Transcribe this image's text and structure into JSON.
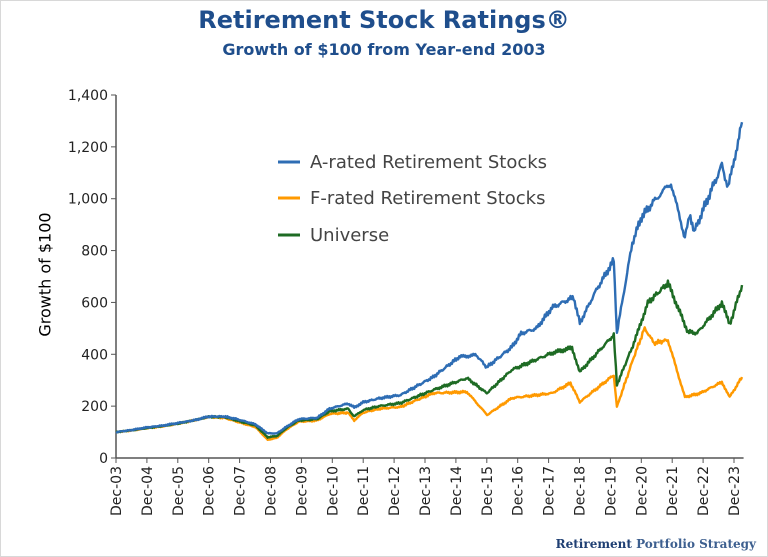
{
  "chart_data": {
    "type": "line",
    "title": "Retirement Stock Ratings®",
    "subtitle": "Growth of $100 from Year-end 2003",
    "xlabel": "",
    "ylabel": "Growth of $100",
    "ylim": [
      0,
      1400
    ],
    "yticks": [
      "0",
      "200",
      "400",
      "600",
      "800",
      "1,000",
      "1,200",
      "1,400"
    ],
    "ytick_values": [
      0,
      200,
      400,
      600,
      800,
      1000,
      1200,
      1400
    ],
    "xticks": [
      "Dec-03",
      "Dec-04",
      "Dec-05",
      "Dec-06",
      "Dec-07",
      "Dec-08",
      "Dec-09",
      "Dec-10",
      "Dec-11",
      "Dec-12",
      "Dec-13",
      "Dec-14",
      "Dec-15",
      "Dec-16",
      "Dec-17",
      "Dec-18",
      "Dec-19",
      "Dec-20",
      "Dec-21",
      "Dec-22",
      "Dec-23"
    ],
    "grid": false,
    "legend_position": "top-left",
    "series": [
      {
        "name": "A-rated Retirement Stocks",
        "color": "#2e6db4",
        "x": [
          2003.99,
          2004.5,
          2004.99,
          2005.5,
          2005.99,
          2006.5,
          2006.99,
          2007.5,
          2007.9,
          2008.5,
          2008.9,
          2009.2,
          2009.5,
          2009.9,
          2010.5,
          2010.9,
          2011.5,
          2011.7,
          2011.99,
          2012.5,
          2013.2,
          2014.25,
          2015.1,
          2015.65,
          2015.99,
          2016.8,
          2017.1,
          2017.6,
          2018.1,
          2018.8,
          2019.0,
          2019.5,
          2020.1,
          2020.2,
          2020.7,
          2021.0,
          2021.5,
          2021.95,
          2022.4,
          2022.55,
          2022.7,
          2023.0,
          2023.6,
          2023.8,
          2024.25
        ],
        "y": [
          100,
          108,
          118,
          125,
          135,
          145,
          160,
          160,
          150,
          130,
          95,
          95,
          120,
          150,
          155,
          190,
          210,
          195,
          215,
          230,
          243,
          312,
          390,
          397,
          350,
          428,
          480,
          500,
          580,
          620,
          520,
          640,
          763,
          482,
          830,
          930,
          1005,
          1060,
          850,
          940,
          870,
          960,
          1130,
          1040,
          1295
        ]
      },
      {
        "name": "F-rated Retirement Stocks",
        "color": "#ff9900",
        "x": [
          2003.99,
          2004.5,
          2004.99,
          2005.5,
          2005.99,
          2006.5,
          2006.99,
          2007.5,
          2007.9,
          2008.5,
          2008.9,
          2009.2,
          2009.5,
          2009.9,
          2010.5,
          2010.9,
          2011.5,
          2011.7,
          2011.99,
          2012.5,
          2013.2,
          2014.25,
          2015.35,
          2016.0,
          2016.8,
          2018.1,
          2018.7,
          2019.0,
          2020.1,
          2020.2,
          2020.75,
          2021.1,
          2021.4,
          2021.85,
          2022.4,
          2022.9,
          2023.6,
          2023.85,
          2024.25
        ],
        "y": [
          100,
          106,
          115,
          122,
          132,
          145,
          158,
          155,
          140,
          120,
          70,
          78,
          110,
          140,
          145,
          170,
          175,
          145,
          175,
          190,
          197,
          250,
          255,
          166,
          231,
          250,
          289,
          216,
          320,
          197,
          390,
          501,
          443,
          455,
          235,
          250,
          293,
          235,
          312
        ]
      },
      {
        "name": "Universe",
        "color": "#1e6b24",
        "x": [
          2003.99,
          2004.5,
          2004.99,
          2005.5,
          2005.99,
          2006.5,
          2006.99,
          2007.5,
          2007.9,
          2008.5,
          2008.9,
          2009.2,
          2009.5,
          2009.9,
          2010.5,
          2010.9,
          2011.5,
          2011.7,
          2011.99,
          2012.5,
          2013.2,
          2014.25,
          2015.35,
          2015.99,
          2016.8,
          2018.1,
          2018.75,
          2019.0,
          2020.1,
          2020.2,
          2020.75,
          2021.2,
          2021.85,
          2022.5,
          2022.8,
          2023.6,
          2023.85,
          2024.25
        ],
        "y": [
          100,
          107,
          116,
          123,
          133,
          145,
          159,
          158,
          145,
          125,
          80,
          85,
          115,
          145,
          150,
          180,
          190,
          160,
          185,
          200,
          212,
          262,
          308,
          250,
          340,
          405,
          425,
          332,
          475,
          282,
          443,
          598,
          675,
          486,
          482,
          598,
          513,
          667
        ]
      }
    ]
  },
  "logo": {
    "part1": "Retirement",
    "part2": "Portfolio Strategy"
  }
}
